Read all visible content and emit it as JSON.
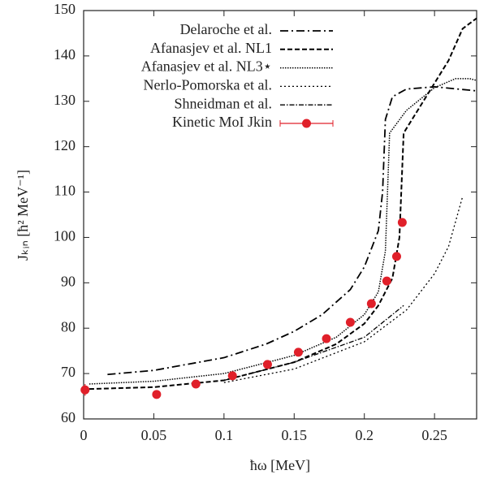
{
  "chart_data": {
    "type": "line",
    "xlabel": "ħω [MeV]",
    "ylabel": "Jₖᵢₙ [ħ² MeV⁻¹]",
    "xlim": [
      0,
      0.28
    ],
    "ylim": [
      60,
      150
    ],
    "xticks": [
      0,
      0.05,
      0.1,
      0.15,
      0.2,
      0.25
    ],
    "yticks": [
      60,
      70,
      80,
      90,
      100,
      110,
      120,
      130,
      140,
      150
    ],
    "grid": false,
    "legend": "top-right",
    "series": [
      {
        "name": "Delaroche et al.",
        "type": "line",
        "color": "#000000",
        "dash": "10 4 2 4",
        "width": 1.8,
        "x": [
          0.017,
          0.05,
          0.1,
          0.13,
          0.15,
          0.17,
          0.19,
          0.2,
          0.21,
          0.213,
          0.215,
          0.22,
          0.23,
          0.25,
          0.28
        ],
        "values": [
          69.8,
          70.7,
          73.5,
          76.5,
          79.3,
          83,
          88.5,
          93.5,
          101.5,
          110,
          126,
          131,
          132.7,
          133.2,
          132.3
        ]
      },
      {
        "name": "Afanasjev et al. NL1",
        "type": "line",
        "color": "#000000",
        "dash": "6 3",
        "width": 2,
        "x": [
          0.004,
          0.05,
          0.1,
          0.15,
          0.18,
          0.2,
          0.21,
          0.22,
          0.225,
          0.228,
          0.24,
          0.26,
          0.27,
          0.28
        ],
        "values": [
          66.6,
          67,
          68.5,
          72.5,
          76.5,
          81,
          85,
          91,
          100,
          123,
          129,
          139,
          146,
          148.3
        ]
      },
      {
        "name": "Afanasjev et al. NL3⋆",
        "type": "line",
        "color": "#000000",
        "dash": "1.5 1.5",
        "width": 1.5,
        "x": [
          0.004,
          0.05,
          0.1,
          0.15,
          0.18,
          0.2,
          0.21,
          0.215,
          0.218,
          0.23,
          0.25,
          0.265,
          0.275,
          0.28
        ],
        "values": [
          67.7,
          68.3,
          70,
          74,
          78,
          83,
          88,
          97,
          123,
          128,
          133,
          135,
          135,
          134.6
        ]
      },
      {
        "name": "Nerlo-Pomorska et al.",
        "type": "line",
        "color": "#000000",
        "dash": "2 3",
        "width": 1.3,
        "x": [
          0.1,
          0.15,
          0.2,
          0.23,
          0.25,
          0.26,
          0.27
        ],
        "values": [
          68,
          71,
          77,
          84,
          92,
          98,
          109
        ]
      },
      {
        "name": "Shneidman et al.",
        "type": "line",
        "color": "#000000",
        "dash": "6 2 1.5 2",
        "width": 1.3,
        "x": [
          0.1,
          0.15,
          0.2,
          0.228
        ],
        "values": [
          68.5,
          72.5,
          78,
          85
        ]
      },
      {
        "name": "Kinetic MoI Jkin",
        "type": "scatter",
        "color": "#e0202a",
        "x": [
          0.001,
          0.052,
          0.08,
          0.106,
          0.131,
          0.153,
          0.173,
          0.19,
          0.205,
          0.216,
          0.223,
          0.227
        ],
        "values": [
          66.4,
          65.4,
          67.7,
          69.5,
          72.0,
          74.7,
          77.7,
          81.3,
          85.4,
          90.4,
          95.8,
          103.3
        ],
        "errors": [
          1.3,
          0.2,
          0.2,
          0.2,
          0.2,
          0.2,
          0.2,
          0.2,
          0.2,
          0.2,
          0.2,
          0.2
        ]
      }
    ]
  }
}
